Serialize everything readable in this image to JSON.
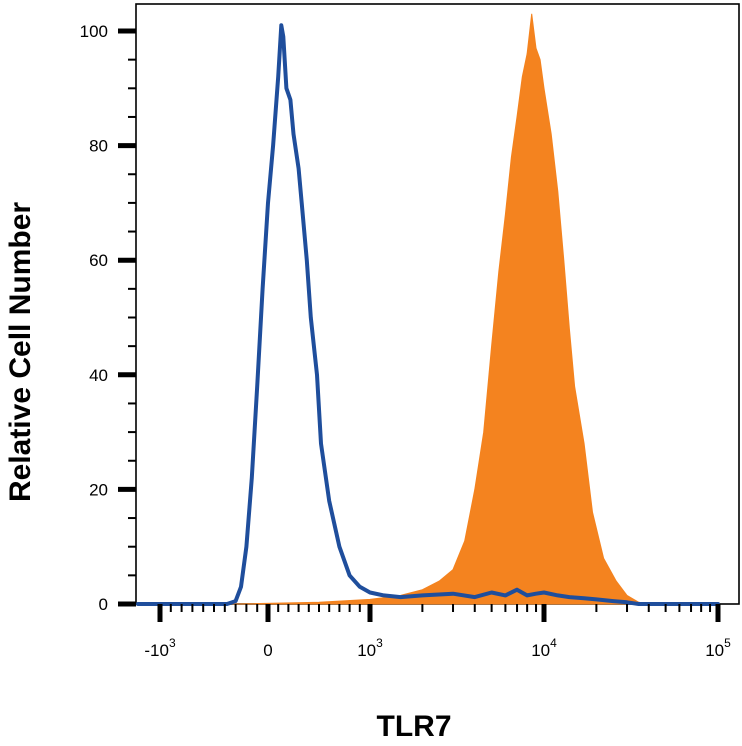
{
  "chart_data": {
    "type": "area",
    "title": "",
    "xlabel": "TLR7",
    "ylabel": "Relative Cell Number",
    "x_scale": "biexponential",
    "xlim": [
      -2000,
      100000
    ],
    "ylim": [
      0,
      105
    ],
    "grid": false,
    "y_ticks": [
      "0",
      "20",
      "40",
      "60",
      "80",
      "100"
    ],
    "x_tick_labels": [
      {
        "base": "-10",
        "exp": "3",
        "value": -1000
      },
      {
        "base": "0",
        "exp": "",
        "value": 0
      },
      {
        "base": "10",
        "exp": "3",
        "value": 1000
      },
      {
        "base": "10",
        "exp": "4",
        "value": 10000
      },
      {
        "base": "10",
        "exp": "5",
        "value": 100000
      }
    ],
    "series": [
      {
        "style": "filled",
        "color": "#f4831f",
        "points": [
          [
            -2000,
            0
          ],
          [
            -300,
            0
          ],
          [
            500,
            0.3
          ],
          [
            1000,
            0.8
          ],
          [
            1500,
            1.5
          ],
          [
            2000,
            2.5
          ],
          [
            2500,
            4
          ],
          [
            3000,
            6
          ],
          [
            3500,
            11
          ],
          [
            4000,
            20
          ],
          [
            4500,
            30
          ],
          [
            5000,
            45
          ],
          [
            5500,
            58
          ],
          [
            6000,
            68
          ],
          [
            6500,
            78
          ],
          [
            7000,
            85
          ],
          [
            7500,
            92
          ],
          [
            8000,
            96
          ],
          [
            8500,
            103
          ],
          [
            9000,
            97
          ],
          [
            9500,
            95
          ],
          [
            10000,
            90
          ],
          [
            11000,
            82
          ],
          [
            12000,
            72
          ],
          [
            13000,
            60
          ],
          [
            14000,
            48
          ],
          [
            15000,
            38
          ],
          [
            17000,
            28
          ],
          [
            19000,
            16
          ],
          [
            22000,
            8
          ],
          [
            26000,
            4
          ],
          [
            30000,
            1.5
          ],
          [
            35000,
            0.3
          ],
          [
            40000,
            0
          ],
          [
            100000,
            0
          ]
        ]
      },
      {
        "style": "line",
        "color": "#1f4e9c",
        "points": [
          [
            -2000,
            0
          ],
          [
            -380,
            0
          ],
          [
            -300,
            0.5
          ],
          [
            -250,
            3
          ],
          [
            -200,
            10
          ],
          [
            -150,
            22
          ],
          [
            -100,
            38
          ],
          [
            -50,
            55
          ],
          [
            0,
            70
          ],
          [
            50,
            80
          ],
          [
            100,
            92
          ],
          [
            130,
            101
          ],
          [
            150,
            99
          ],
          [
            180,
            90
          ],
          [
            220,
            88
          ],
          [
            250,
            82
          ],
          [
            300,
            76
          ],
          [
            330,
            70
          ],
          [
            380,
            60
          ],
          [
            420,
            50
          ],
          [
            480,
            40
          ],
          [
            520,
            28
          ],
          [
            600,
            18
          ],
          [
            700,
            10
          ],
          [
            800,
            5
          ],
          [
            900,
            3
          ],
          [
            1000,
            2
          ],
          [
            1200,
            1.5
          ],
          [
            1500,
            1.2
          ],
          [
            2000,
            1.5
          ],
          [
            3000,
            1.8
          ],
          [
            4000,
            1.2
          ],
          [
            5000,
            2
          ],
          [
            6000,
            1.5
          ],
          [
            7000,
            2.5
          ],
          [
            8000,
            1.5
          ],
          [
            9000,
            1.8
          ],
          [
            10000,
            2
          ],
          [
            12000,
            1.5
          ],
          [
            14000,
            1.2
          ],
          [
            17000,
            1
          ],
          [
            20000,
            0.8
          ],
          [
            25000,
            0.5
          ],
          [
            30000,
            0.3
          ],
          [
            35000,
            0
          ],
          [
            100000,
            0
          ]
        ]
      }
    ]
  }
}
